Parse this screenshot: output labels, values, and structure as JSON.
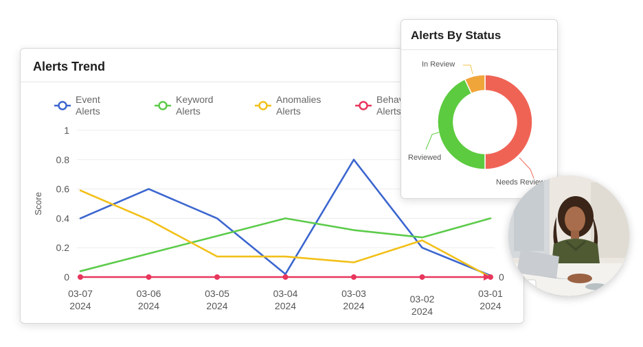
{
  "trend_card": {
    "title": "Alerts Trend",
    "ylabel": "Score",
    "right_axis_label": "0",
    "legend": [
      {
        "line1": "Event",
        "line2": "Alerts",
        "color": "#3b66cf"
      },
      {
        "line1": "Keyword",
        "line2": "Alerts",
        "color": "#5ccb4a"
      },
      {
        "line1": "Anomalies",
        "line2": "Alerts",
        "color": "#f2c018"
      },
      {
        "line1": "Behavior",
        "line2": "Alerts",
        "color": "#e8365c"
      }
    ]
  },
  "chart_data": [
    {
      "type": "line",
      "title": "Alerts Trend",
      "xlabel": "",
      "ylabel": "Score",
      "ylim": [
        0,
        1
      ],
      "yticks": [
        "0",
        "0.2",
        "0.4",
        "0.6",
        "0.8",
        "1"
      ],
      "x": [
        {
          "l1": "03-07",
          "l2": "2024"
        },
        {
          "l1": "03-06",
          "l2": "2024"
        },
        {
          "l1": "03-05",
          "l2": "2024"
        },
        {
          "l1": "03-04",
          "l2": "2024"
        },
        {
          "l1": "03-03",
          "l2": "2024"
        },
        {
          "l1": "03-02",
          "l2": "2024"
        },
        {
          "l1": "03-01",
          "l2": "2024"
        }
      ],
      "grid": true,
      "legend_position": "top",
      "series": [
        {
          "name": "Event Alerts",
          "color": "#3b66cf",
          "values": [
            0.4,
            0.6,
            0.4,
            0.02,
            0.8,
            0.2,
            0.01
          ]
        },
        {
          "name": "Keyword Alerts",
          "color": "#5ccb4a",
          "values": [
            0.04,
            0.16,
            0.28,
            0.4,
            0.32,
            0.27,
            0.4
          ]
        },
        {
          "name": "Anomalies Alerts",
          "color": "#f2c018",
          "values": [
            0.59,
            0.39,
            0.14,
            0.14,
            0.1,
            0.25,
            0.0
          ]
        },
        {
          "name": "Behavior Alerts",
          "color": "#e8365c",
          "values": [
            0,
            0,
            0,
            0,
            0,
            0,
            0
          ]
        }
      ]
    },
    {
      "type": "pie",
      "title": "Alerts By Status",
      "donut": true,
      "slices": [
        {
          "label": "Needs Review",
          "value": 50,
          "color": "#ef6355"
        },
        {
          "label": "Reviewed",
          "value": 43,
          "color": "#5ccb3f"
        },
        {
          "label": "In Review",
          "value": 7,
          "color": "#f0a53a"
        }
      ]
    }
  ],
  "status_card": {
    "title": "Alerts By Status"
  }
}
